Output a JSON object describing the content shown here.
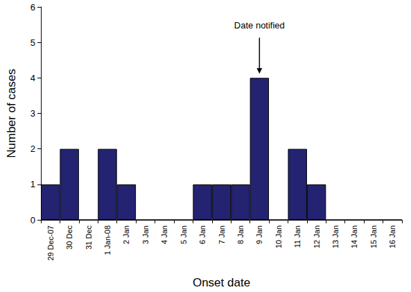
{
  "chart_data": {
    "type": "bar",
    "x_label": "Onset date",
    "y_label": "Number of cases",
    "categories": [
      "29 Dec-07",
      "30 Dec",
      "31 Dec",
      "1 Jan-08",
      "2 Jan",
      "3 Jan",
      "4 Jan",
      "5 Jan",
      "6 Jan",
      "7 Jan",
      "8 Jan",
      "9 Jan",
      "10 Jan",
      "11 Jan",
      "12 Jan",
      "13 Jan",
      "14 Jan",
      "15 Jan",
      "16 Jan"
    ],
    "values": [
      1,
      2,
      0,
      2,
      1,
      0,
      0,
      0,
      1,
      1,
      1,
      4,
      0,
      2,
      1,
      0,
      0,
      0,
      0
    ],
    "color": "#232371",
    "ylim": [
      0,
      6
    ],
    "yticks": [
      0,
      1,
      2,
      3,
      4,
      5,
      6
    ],
    "grid": false,
    "annotations": [
      {
        "text": "Date notified",
        "x": "9 Jan"
      }
    ]
  }
}
